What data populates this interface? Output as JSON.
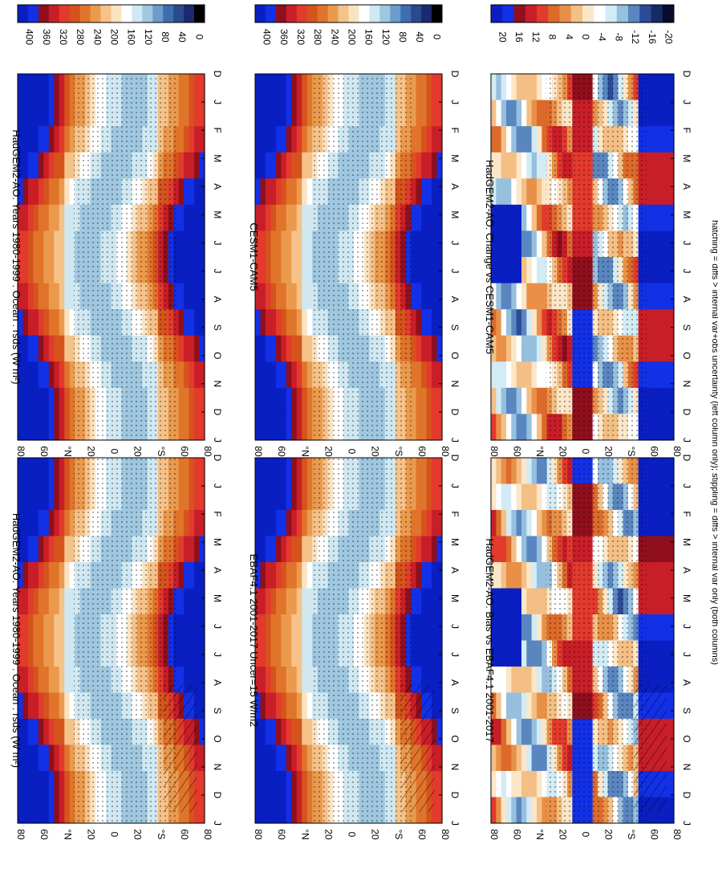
{
  "figure": {
    "footer": "hatching = diffs > internal var+obs uncertainty (left column only); stippling = diffs > internal var only (both columns)"
  },
  "colors": {
    "absolute_scale": [
      "#000000",
      "#1a2a6c",
      "#2b4a8e",
      "#3d6fb0",
      "#6b9ccc",
      "#9fc7e0",
      "#cfe8f2",
      "#ffffff",
      "#fbe3c2",
      "#f5c28a",
      "#eb9a4d",
      "#e0742a",
      "#d5531c",
      "#e23a2c",
      "#c81e28",
      "#8f0f1d",
      "#1230e6",
      "#0a1fc2"
    ],
    "diff_scale": [
      "#0b0b2e",
      "#162a6a",
      "#2a4c96",
      "#5a86c0",
      "#97bfde",
      "#d2ebf5",
      "#ffffff",
      "#fbe6c8",
      "#f3bf85",
      "#e89048",
      "#dc6a2a",
      "#e23a2c",
      "#c81e28",
      "#8f0f1d",
      "#1230e6",
      "#0a1fc2"
    ],
    "stipple": "#000000"
  },
  "chart_data": [
    {
      "type": "heatmap",
      "title": "HadGEM2-AO: Years 1980-1999 : Ocean : rsds (W m²)",
      "x": [
        "D",
        "J",
        "F",
        "M",
        "A",
        "M",
        "J",
        "J",
        "A",
        "S",
        "O",
        "N",
        "D",
        "J"
      ],
      "y_ticks": [
        "80",
        "60",
        "°N",
        "20",
        "0",
        "20",
        "°S",
        "60",
        "80"
      ],
      "colorbar": {
        "ticks": [
          "400",
          "360",
          "320",
          "280",
          "240",
          "200",
          "160",
          "120",
          "80",
          "40",
          "0"
        ],
        "range": [
          0,
          440
        ]
      },
      "stippling": true,
      "hatching": true
    },
    {
      "type": "heatmap",
      "title": "HadGEM2-AO: Years 1980-1999 : Ocean : rsds (W m²)",
      "x": [
        "D",
        "J",
        "F",
        "M",
        "A",
        "M",
        "J",
        "J",
        "A",
        "S",
        "O",
        "N",
        "D",
        "J"
      ],
      "y_ticks": [
        "80",
        "60",
        "°N",
        "20",
        "0",
        "20",
        "°S",
        "60",
        "80"
      ],
      "colorbar": {
        "ticks": [
          "400",
          "360",
          "320",
          "280",
          "240",
          "200",
          "160",
          "120",
          "80",
          "40",
          "0"
        ],
        "range": [
          0,
          440
        ]
      },
      "stippling": true,
      "hatching": false
    },
    {
      "type": "heatmap",
      "title": "EBAF4.1 2001-2017 Uncer=15 W/m2",
      "x": [
        "D",
        "J",
        "F",
        "M",
        "A",
        "M",
        "J",
        "J",
        "A",
        "S",
        "O",
        "N",
        "D",
        "J"
      ],
      "y_ticks": [
        "80",
        "60",
        "°N",
        "20",
        "0",
        "20",
        "°S",
        "60",
        "80"
      ],
      "colorbar": {
        "ticks": [
          "400",
          "360",
          "320",
          "280",
          "240",
          "200",
          "160",
          "120",
          "80",
          "40",
          "0"
        ],
        "range": [
          0,
          440
        ]
      },
      "stippling": true,
      "hatching": true
    },
    {
      "type": "heatmap",
      "title": "CESM1-CAM5",
      "x": [
        "D",
        "J",
        "F",
        "M",
        "A",
        "M",
        "J",
        "J",
        "A",
        "S",
        "O",
        "N",
        "D",
        "J"
      ],
      "y_ticks": [
        "80",
        "60",
        "°N",
        "20",
        "0",
        "20",
        "°S",
        "60",
        "80"
      ],
      "colorbar": {
        "ticks": [
          "400",
          "360",
          "320",
          "280",
          "240",
          "200",
          "160",
          "120",
          "80",
          "40",
          "0"
        ],
        "range": [
          0,
          440
        ]
      },
      "stippling": true,
      "hatching": false
    },
    {
      "type": "heatmap",
      "title": "HadGEM2-AO: Bias vs EBAF4.1 2001-2017",
      "x": [
        "D",
        "J",
        "F",
        "M",
        "A",
        "M",
        "J",
        "J",
        "A",
        "S",
        "O",
        "N",
        "D",
        "J"
      ],
      "y_ticks": [
        "80",
        "60",
        "°N",
        "20",
        "0",
        "20",
        "°S",
        "60",
        "80"
      ],
      "colorbar": {
        "ticks": [
          "20",
          "16",
          "12",
          "8",
          "4",
          "0",
          "-4",
          "-8",
          "-12",
          "-16",
          "-20"
        ],
        "range": [
          -22,
          22
        ]
      },
      "stippling": true,
      "hatching": true
    },
    {
      "type": "heatmap",
      "title": "HadGEM2-AO: Change vs CESM1-CAM5",
      "x": [
        "D",
        "J",
        "F",
        "M",
        "A",
        "M",
        "J",
        "J",
        "A",
        "S",
        "O",
        "N",
        "D",
        "J"
      ],
      "y_ticks": [
        "80",
        "60",
        "°N",
        "20",
        "0",
        "20",
        "°S",
        "60",
        "80"
      ],
      "colorbar": {
        "ticks": [
          "20",
          "16",
          "12",
          "8",
          "4",
          "0",
          "-4",
          "-8",
          "-12",
          "-16",
          "-20"
        ],
        "range": [
          -22,
          22
        ]
      },
      "stippling": true,
      "hatching": false
    }
  ]
}
